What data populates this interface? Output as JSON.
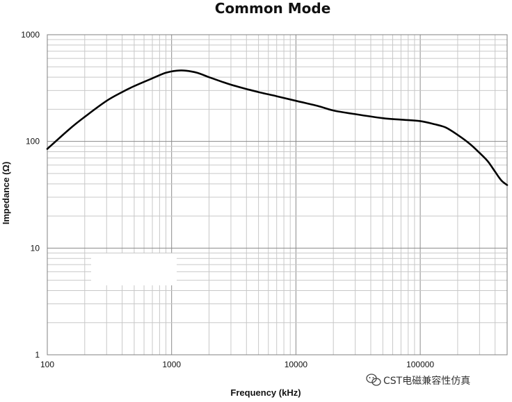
{
  "chart_data": {
    "type": "line",
    "title": "Common Mode",
    "xlabel": "Frequency (kHz)",
    "ylabel": "Impedance (Ω)",
    "x_scale": "log",
    "y_scale": "log",
    "xlim": [
      100,
      500000
    ],
    "ylim": [
      1,
      1000
    ],
    "x_ticks": [
      "100",
      "1000",
      "10000",
      "100000"
    ],
    "y_ticks": [
      "1",
      "10",
      "100",
      "1000"
    ],
    "grid": true,
    "line_color": "#000000",
    "series": [
      {
        "x": [
          100,
          150,
          200,
          300,
          400,
          500,
          700,
          900,
          1100,
          1300,
          1600,
          2000,
          2500,
          3000,
          4000,
          5000,
          7000,
          10000,
          15000,
          20000,
          30000,
          50000,
          70000,
          100000,
          130000,
          160000,
          200000,
          250000,
          300000,
          350000,
          400000,
          450000,
          500000
        ],
        "y": [
          85,
          130,
          170,
          240,
          290,
          330,
          390,
          440,
          460,
          460,
          440,
          400,
          365,
          340,
          310,
          290,
          265,
          240,
          215,
          195,
          180,
          165,
          160,
          155,
          145,
          135,
          115,
          95,
          78,
          65,
          52,
          43,
          39
        ]
      }
    ]
  },
  "watermark": {
    "icon": "wechat-icon",
    "text": "CST电磁兼容性仿真"
  }
}
